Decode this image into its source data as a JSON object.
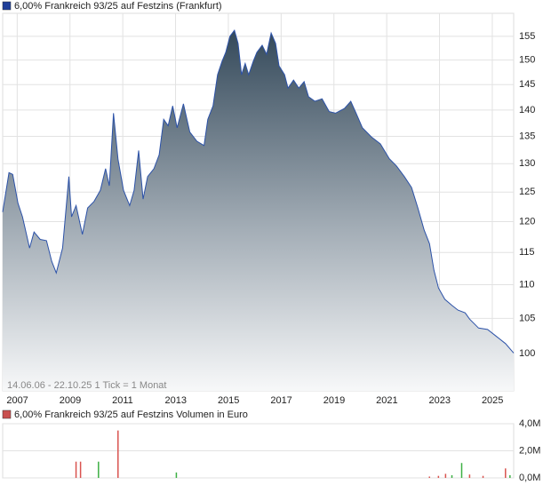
{
  "chart_data": [
    {
      "type": "area",
      "title": "6,00% Frankreich 93/25 auf Festzins (Frankfurt)",
      "annotation": "14.06.06 - 22.10.25   1 Tick = 1 Monat",
      "color": "#2c52a8",
      "legend_color": "#1f3f99",
      "log_scale": true,
      "grid": true,
      "x": [
        2006.45,
        2006.69,
        2006.83,
        2007.03,
        2007.2,
        2007.47,
        2007.64,
        2007.87,
        2008.11,
        2008.31,
        2008.48,
        2008.72,
        2008.96,
        2009.06,
        2009.23,
        2009.47,
        2009.67,
        2009.91,
        2010.15,
        2010.35,
        2010.49,
        2010.65,
        2010.82,
        2011.03,
        2011.26,
        2011.43,
        2011.6,
        2011.77,
        2011.94,
        2012.18,
        2012.38,
        2012.55,
        2012.72,
        2012.89,
        2013.06,
        2013.3,
        2013.54,
        2013.81,
        2014.08,
        2014.22,
        2014.42,
        2014.59,
        2014.76,
        2014.9,
        2015.06,
        2015.23,
        2015.37,
        2015.5,
        2015.64,
        2015.77,
        2015.94,
        2016.08,
        2016.28,
        2016.45,
        2016.62,
        2016.79,
        2016.92,
        2017.13,
        2017.26,
        2017.47,
        2017.67,
        2017.87,
        2018.04,
        2018.28,
        2018.55,
        2018.82,
        2019.06,
        2019.4,
        2019.64,
        2019.84,
        2020.08,
        2020.42,
        2020.76,
        2021.1,
        2021.37,
        2021.67,
        2021.94,
        2022.18,
        2022.42,
        2022.62,
        2022.79,
        2022.96,
        2023.2,
        2023.47,
        2023.7,
        2023.97,
        2024.14,
        2024.48,
        2024.82,
        2025.16,
        2025.5,
        2025.81
      ],
      "values": [
        121.6,
        128.4,
        128.1,
        123.1,
        120.8,
        115.7,
        118.3,
        117.1,
        116.9,
        113.6,
        111.8,
        115.7,
        127.7,
        120.8,
        122.7,
        117.9,
        122.3,
        123.4,
        125.3,
        129.1,
        126.1,
        139.4,
        130.8,
        125.3,
        122.7,
        125.3,
        132.4,
        123.8,
        127.7,
        129.1,
        131.6,
        138.2,
        137.0,
        140.8,
        136.6,
        141.2,
        135.8,
        134.1,
        133.3,
        138.2,
        140.8,
        147.0,
        149.7,
        151.6,
        155.0,
        156.3,
        153.5,
        147.0,
        149.3,
        147.0,
        149.7,
        151.6,
        153.1,
        151.2,
        155.7,
        153.5,
        148.8,
        147.0,
        144.3,
        145.9,
        144.3,
        145.6,
        142.6,
        141.7,
        142.2,
        139.7,
        139.4,
        140.3,
        141.7,
        139.4,
        136.6,
        134.9,
        133.6,
        130.9,
        129.6,
        127.7,
        125.8,
        122.3,
        118.6,
        116.4,
        112.2,
        109.5,
        107.8,
        106.9,
        106.2,
        105.8,
        104.9,
        103.6,
        103.4,
        102.4,
        101.4,
        100.1
      ],
      "xlim": [
        2006.45,
        2025.81
      ],
      "xticks": [
        2007,
        2009,
        2011,
        2013,
        2015,
        2017,
        2019,
        2021,
        2023,
        2025
      ],
      "ylim": [
        95,
        160
      ],
      "yticks": [
        100,
        105,
        110,
        115,
        120,
        125,
        130,
        135,
        140,
        145,
        150,
        155
      ]
    },
    {
      "type": "bar",
      "title": "6,00% Frankreich 93/25 auf Festzins Volumen in Euro",
      "legend_color": "#c9504f",
      "grid": true,
      "x": [
        2009.23,
        2009.4,
        2010.08,
        2010.82,
        2013.03,
        2022.62,
        2022.96,
        2023.23,
        2023.47,
        2023.84,
        2024.14,
        2024.65,
        2025.5,
        2025.67
      ],
      "values": [
        1200000,
        1200000,
        1200000,
        3500000,
        400000,
        100000,
        150000,
        300000,
        200000,
        1100000,
        250000,
        150000,
        700000,
        200000
      ],
      "colors": [
        "#d9534f",
        "#d9534f",
        "#3cb043",
        "#d9534f",
        "#3cb043",
        "#d9534f",
        "#d9534f",
        "#d9534f",
        "#3cb043",
        "#3cb043",
        "#d9534f",
        "#d9534f",
        "#d9534f",
        "#3cb043"
      ],
      "xlim": [
        2006.45,
        2025.81
      ],
      "ylim": [
        0,
        4000000
      ],
      "yticks": [
        {
          "value": 0,
          "label": "0,0M"
        },
        {
          "value": 2000000,
          "label": "2,0M"
        },
        {
          "value": 4000000,
          "label": "4,0M"
        }
      ]
    }
  ]
}
